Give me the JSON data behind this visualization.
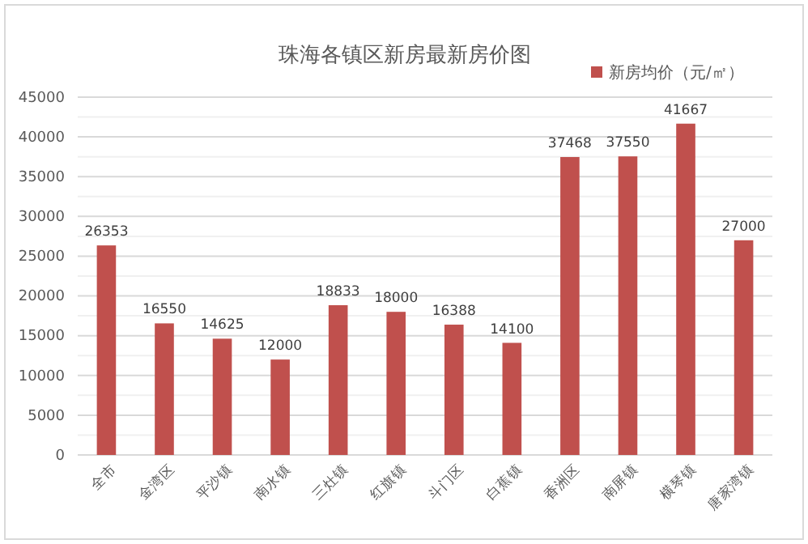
{
  "chart_data": {
    "type": "bar",
    "title": "珠海各镇区新房最新房价图",
    "categories": [
      "全市",
      "金湾区",
      "平沙镇",
      "南水镇",
      "三灶镇",
      "红旗镇",
      "斗门区",
      "白蕉镇",
      "香洲区",
      "南屏镇",
      "横琴镇",
      "唐家湾镇"
    ],
    "series": [
      {
        "name": "新房均价（元/㎡）",
        "color": "#c0504d",
        "values": [
          26353,
          16550,
          14625,
          12000,
          18833,
          18000,
          16388,
          14100,
          37468,
          37550,
          41667,
          27000
        ]
      }
    ],
    "ylim": [
      0,
      45000
    ],
    "yticks": [
      0,
      {
        "value": 2500,
        "label": null
      },
      5000,
      {
        "value": 7500,
        "label": null
      },
      10000,
      {
        "value": 12500,
        "label": null
      },
      15000,
      {
        "value": 17500,
        "label": null
      },
      20000,
      {
        "value": 22500,
        "label": null
      },
      25000,
      {
        "value": 27500,
        "label": null
      },
      30000,
      {
        "value": 32500,
        "label": null
      },
      35000,
      {
        "value": 37500,
        "label": null
      },
      40000,
      {
        "value": 42500,
        "label": null
      },
      45000
    ],
    "grid": "y",
    "legend": "top right",
    "data_labels": true
  }
}
